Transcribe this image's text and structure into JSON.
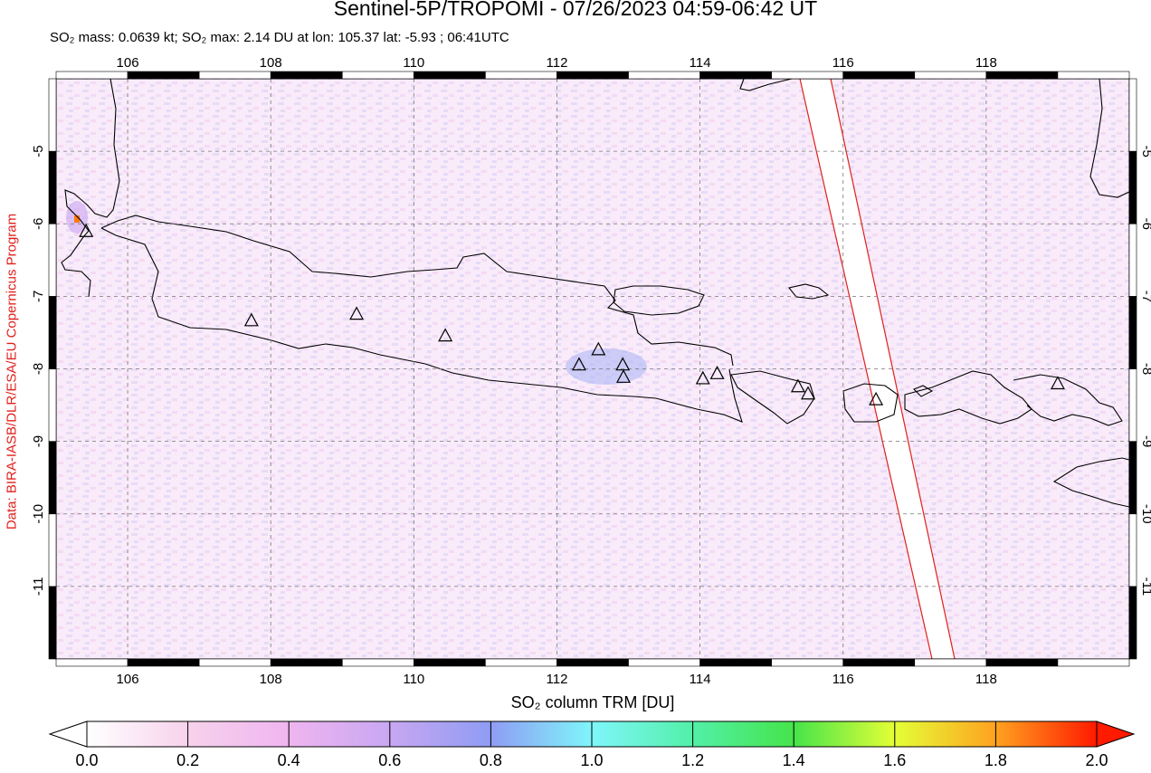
{
  "header": {
    "title": "Sentinel-5P/TROPOMI - 07/26/2023 04:59-06:42 UT",
    "subtitle": "SO₂ mass: 0.0639 kt; SO₂ max: 2.14 DU at lon: 105.37 lat: -5.93 ; 06:41UTC"
  },
  "credit": "Data: BIRA-IASB/DLR/ESA/EU Copernicus Program",
  "map": {
    "lon_range": [
      105.0,
      120.0
    ],
    "lat_range": [
      -12.0,
      -4.0
    ],
    "x_ticks": [
      "106",
      "108",
      "110",
      "112",
      "114",
      "116",
      "118"
    ],
    "y_ticks": [
      "-5",
      "-6",
      "-7",
      "-8",
      "-9",
      "-10",
      "-11"
    ],
    "grid": "dashed",
    "volcano_marker": "triangle-icon",
    "volcanoes_lonlat": [
      [
        105.42,
        -6.1
      ],
      [
        107.73,
        -7.33
      ],
      [
        109.2,
        -7.24
      ],
      [
        110.44,
        -7.54
      ],
      [
        112.31,
        -7.94
      ],
      [
        112.58,
        -7.73
      ],
      [
        112.92,
        -7.94
      ],
      [
        112.93,
        -8.11
      ],
      [
        114.04,
        -8.13
      ],
      [
        114.24,
        -8.06
      ],
      [
        115.37,
        -8.24
      ],
      [
        115.51,
        -8.34
      ],
      [
        116.46,
        -8.42
      ],
      [
        119.0,
        -8.2
      ]
    ]
  },
  "colorbar": {
    "title": "SO₂ column TRM [DU]",
    "tick_labels": [
      "0.0",
      "0.2",
      "0.4",
      "0.6",
      "0.8",
      "1.0",
      "1.2",
      "1.4",
      "1.6",
      "1.8",
      "2.0"
    ],
    "colors": [
      "#ffffff",
      "#f7d2ec",
      "#e8b8f0",
      "#c3a6f1",
      "#8f9cf4",
      "#7ff6fa",
      "#4ff29c",
      "#41e64c",
      "#e4ff36",
      "#ffa220",
      "#ff0000"
    ]
  }
}
